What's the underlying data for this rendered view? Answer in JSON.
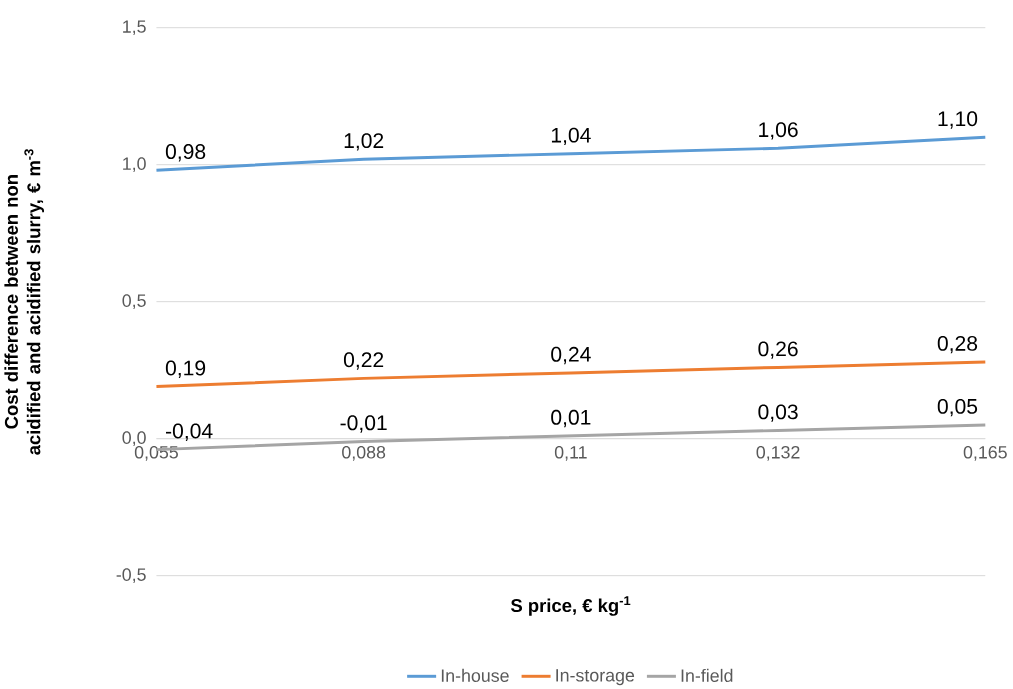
{
  "chart_data": {
    "type": "line",
    "xlabel": "S price, € kg$^{-1}$",
    "ylabel": "Cost difference between non acidified and acidified slurry, € m$^{-3}$",
    "categories": [
      "0,055",
      "0,088",
      "0,11",
      "0,132",
      "0,165"
    ],
    "series": [
      {
        "name": "In-house",
        "color": "#5b9bd5",
        "values": [
          0.98,
          1.02,
          1.04,
          1.06,
          1.1
        ],
        "value_labels": [
          "0,98",
          "1,02",
          "1,04",
          "1,06",
          "1,10"
        ]
      },
      {
        "name": "In-storage",
        "color": "#ed7d31",
        "values": [
          0.19,
          0.22,
          0.24,
          0.26,
          0.28
        ],
        "value_labels": [
          "0,19",
          "0,22",
          "0,24",
          "0,26",
          "0,28"
        ]
      },
      {
        "name": "In-field",
        "color": "#a5a5a5",
        "values": [
          -0.04,
          -0.01,
          0.01,
          0.03,
          0.05
        ],
        "value_labels": [
          "-0,04",
          "-0,01",
          "0,01",
          "0,03",
          "0,05"
        ]
      }
    ],
    "ylim": [
      -0.5,
      1.5
    ],
    "yticks": [
      {
        "value": -0.5,
        "label": "-0,5"
      },
      {
        "value": 0.0,
        "label": "0,0"
      },
      {
        "value": 0.5,
        "label": "0,5"
      },
      {
        "value": 1.0,
        "label": "1,0"
      },
      {
        "value": 1.5,
        "label": "1,5"
      }
    ],
    "grid": "y",
    "legend": "bottom"
  }
}
